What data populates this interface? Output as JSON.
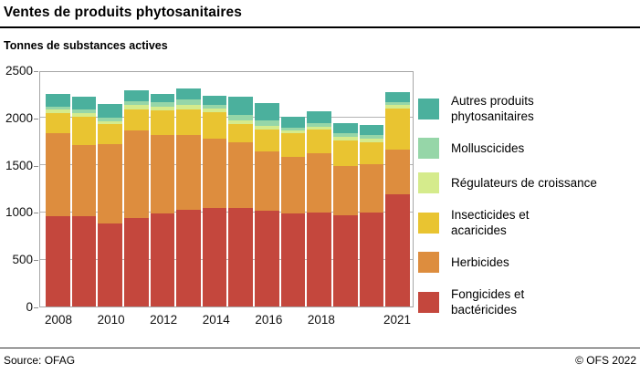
{
  "header": {
    "title": "Ventes de produits phytosanitaires",
    "subtitle": "Tonnes de substances actives"
  },
  "footer": {
    "source": "Source: OFAG",
    "copyright": "© OFS 2022"
  },
  "chart_data": {
    "type": "bar",
    "stacked": true,
    "title": "Ventes de produits phytosanitaires",
    "ylabel": "Tonnes de substances actives",
    "xlabel": "",
    "ylim": [
      0,
      2500
    ],
    "y_ticks": [
      0,
      500,
      1000,
      1500,
      2000,
      2500
    ],
    "grid": true,
    "legend_position": "right",
    "categories": [
      2008,
      2009,
      2010,
      2011,
      2012,
      2013,
      2014,
      2015,
      2016,
      2017,
      2018,
      2019,
      2020,
      2021
    ],
    "x_tick_labels": [
      "2008",
      "",
      "2010",
      "",
      "2012",
      "",
      "2014",
      "",
      "2016",
      "",
      "2018",
      "",
      "",
      "2021"
    ],
    "series": [
      {
        "name": "Fongicides et bactéricides",
        "legend_lines": [
          "Fongicides et",
          "bactéricides"
        ],
        "color": "#c4473d",
        "values": [
          952,
          957,
          877,
          935,
          981,
          1025,
          1042,
          1042,
          1016,
          983,
          990,
          961,
          990,
          1185
        ]
      },
      {
        "name": "Herbicides",
        "legend_lines": [
          "Herbicides"
        ],
        "color": "#dd8d3e",
        "values": [
          880,
          752,
          838,
          929,
          832,
          788,
          738,
          693,
          622,
          603,
          629,
          528,
          519,
          480
        ]
      },
      {
        "name": "Insecticides et acaricides",
        "legend_lines": [
          "Insecticides et",
          "acaricides"
        ],
        "color": "#e9c431",
        "values": [
          218,
          303,
          213,
          225,
          266,
          276,
          274,
          199,
          232,
          246,
          251,
          265,
          232,
          430
        ]
      },
      {
        "name": "Régulateurs de croissance",
        "legend_lines": [
          "Régulateurs de croissance"
        ],
        "color": "#d5eb8c",
        "values": [
          33,
          38,
          35,
          42,
          33,
          45,
          42,
          39,
          39,
          32,
          32,
          39,
          38,
          38
        ]
      },
      {
        "name": "Molluscicides",
        "legend_lines": [
          "Molluscicides"
        ],
        "color": "#96d6a8",
        "values": [
          32,
          39,
          39,
          42,
          51,
          58,
          41,
          52,
          58,
          32,
          36,
          39,
          39,
          32
        ]
      },
      {
        "name": "Autres produits phytosanitaires",
        "legend_lines": [
          "Autres produits",
          "phytosanitaires"
        ],
        "color": "#4bb09d",
        "values": [
          138,
          135,
          145,
          119,
          87,
          114,
          97,
          199,
          187,
          113,
          132,
          112,
          104,
          107
        ]
      }
    ],
    "legend_order": "reversed (top legend entry = top stack segment)"
  }
}
